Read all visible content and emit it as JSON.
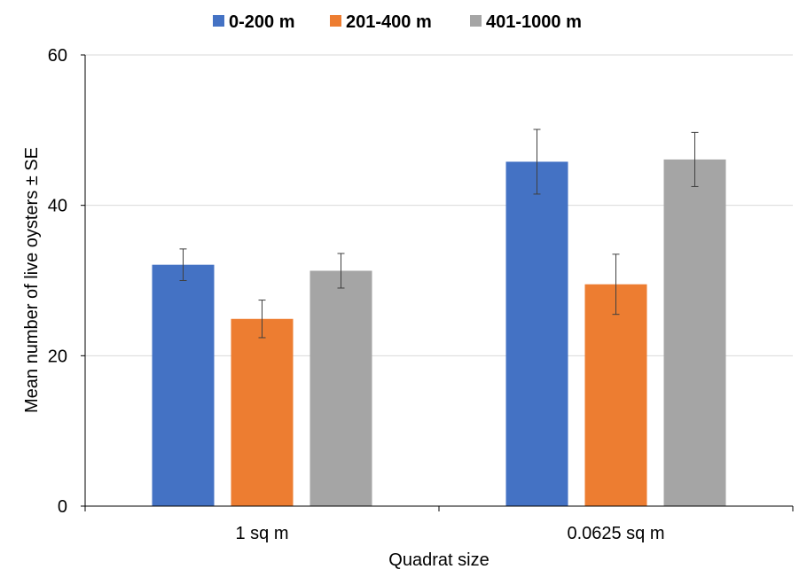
{
  "chart_data": {
    "type": "bar",
    "title": "",
    "xlabel": "Quadrat size",
    "ylabel": "Mean number of live oysters ± SE",
    "categories": [
      "1 sq m",
      "0.0625 sq m"
    ],
    "ylim": [
      0,
      60
    ],
    "yticks": [
      0,
      20,
      40,
      60
    ],
    "grid": true,
    "legend_position": "top",
    "series": [
      {
        "name": "0-200 m",
        "color": "#4472C4",
        "values": [
          32.1,
          45.8
        ],
        "error": [
          2.1,
          4.3
        ]
      },
      {
        "name": "201-400 m",
        "color": "#ED7D31",
        "values": [
          24.9,
          29.5
        ],
        "error": [
          2.5,
          4.0
        ]
      },
      {
        "name": "401-1000 m",
        "color": "#A5A5A5",
        "values": [
          31.3,
          46.1
        ],
        "error": [
          2.3,
          3.6
        ]
      }
    ]
  }
}
